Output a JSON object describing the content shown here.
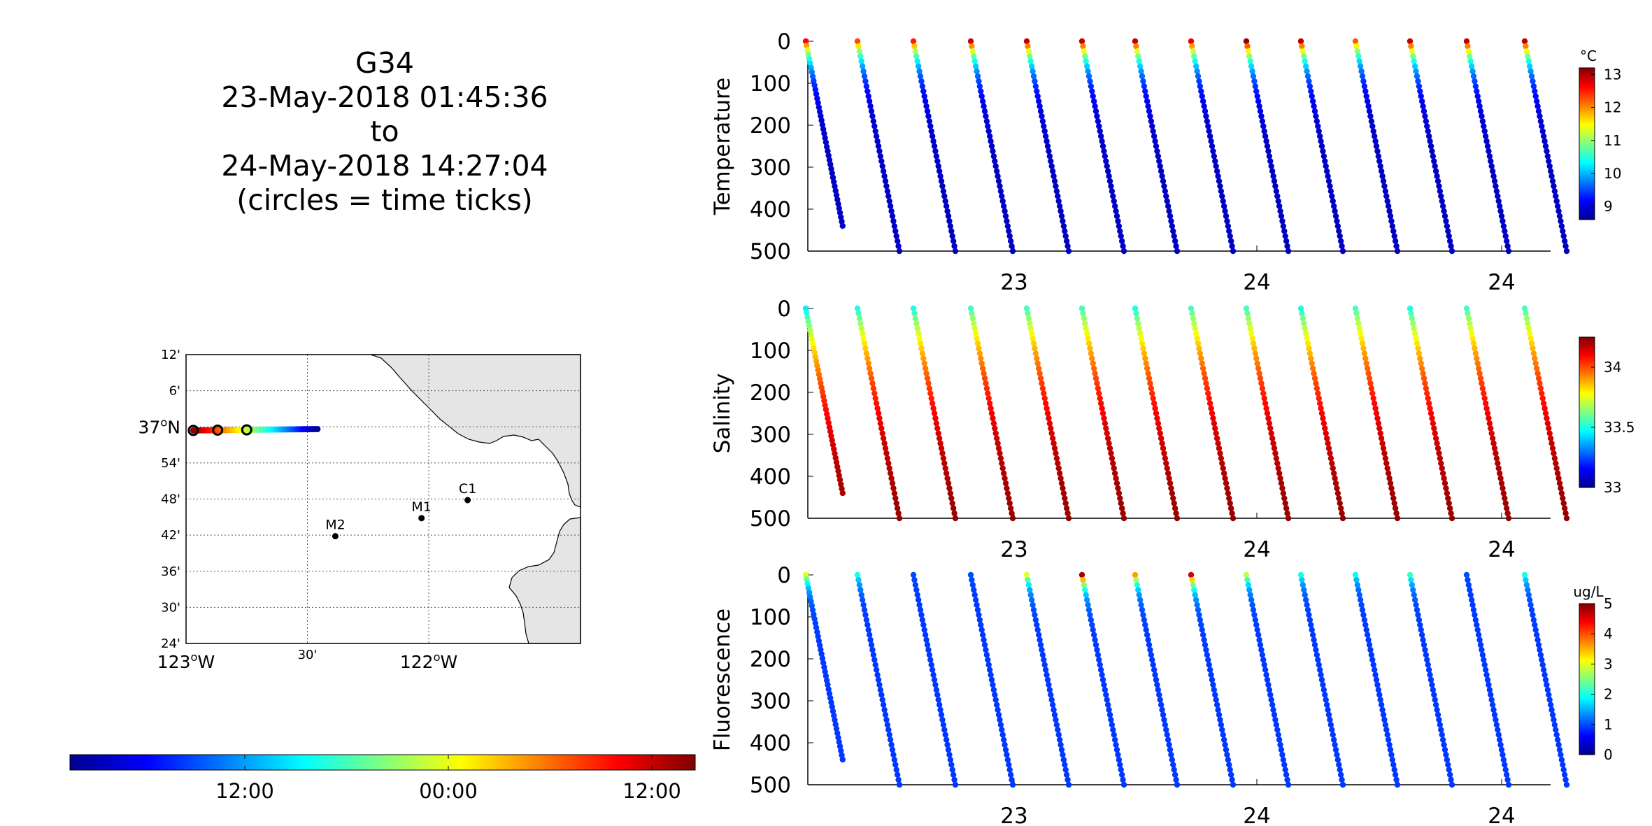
{
  "title": {
    "glider": "G34",
    "start": "23-May-2018 01:45:36",
    "to": "to",
    "end": "24-May-2018 14:27:04",
    "note": "(circles = time ticks)"
  },
  "chart_data": [
    {
      "type": "map",
      "lon_ticks": [
        "123°W",
        "30'",
        "122°W"
      ],
      "lat_ticks": [
        "12'",
        "6'",
        "37°N",
        "54'",
        "48'",
        "42'",
        "36'",
        "30'",
        "24'"
      ],
      "lon_range": [
        -123.0,
        -121.375
      ],
      "lat_range": [
        36.4,
        37.2
      ],
      "grid": true,
      "stations": [
        {
          "name": "M2",
          "lon": -122.385,
          "lat": 36.697
        },
        {
          "name": "M1",
          "lon": -122.03,
          "lat": 36.747
        },
        {
          "name": "C1",
          "lon": -121.84,
          "lat": 36.797
        }
      ],
      "track": {
        "lon_start": -122.97,
        "lon_end": -122.45,
        "lat": 36.99
      },
      "time_ticks_lon": [
        -122.97,
        -122.87,
        -122.75
      ],
      "time_colorbar": {
        "ticks": [
          "12:00",
          "00:00",
          "12:00"
        ],
        "colormap": "jet"
      }
    },
    {
      "type": "scatter",
      "ylabel": "Temperature",
      "ylim": [
        500,
        0
      ],
      "yticks": [
        "0",
        "100",
        "200",
        "300",
        "400",
        "500"
      ],
      "xticks": [
        "23",
        "24",
        "24"
      ],
      "colorbar": {
        "unit": "°C",
        "ticks": [
          "13",
          "12",
          "11",
          "10",
          "9"
        ],
        "range": [
          8.6,
          13.2
        ]
      },
      "profiles": [
        {
          "bottom": 440,
          "top_value": 12.6
        },
        {
          "bottom": 500,
          "top_value": 12.3
        },
        {
          "bottom": 500,
          "top_value": 12.5
        },
        {
          "bottom": 500,
          "top_value": 12.8
        },
        {
          "bottom": 500,
          "top_value": 12.9
        },
        {
          "bottom": 500,
          "top_value": 12.9
        },
        {
          "bottom": 500,
          "top_value": 12.9
        },
        {
          "bottom": 500,
          "top_value": 12.7
        },
        {
          "bottom": 500,
          "top_value": 13.1
        },
        {
          "bottom": 500,
          "top_value": 12.9
        },
        {
          "bottom": 500,
          "top_value": 12.2
        },
        {
          "bottom": 500,
          "top_value": 12.9
        },
        {
          "bottom": 500,
          "top_value": 12.9
        },
        {
          "bottom": 500,
          "top_value": 12.9
        }
      ]
    },
    {
      "type": "scatter",
      "ylabel": "Salinity",
      "ylim": [
        500,
        0
      ],
      "yticks": [
        "0",
        "100",
        "200",
        "300",
        "400",
        "500"
      ],
      "xticks": [
        "23",
        "24",
        "24"
      ],
      "colorbar": {
        "unit": "",
        "ticks": [
          "34",
          "33.5",
          "33"
        ],
        "range": [
          33.0,
          34.25
        ]
      },
      "profiles": [
        {
          "bottom": 440,
          "top_value": 33.45
        },
        {
          "bottom": 500,
          "top_value": 33.5
        },
        {
          "bottom": 500,
          "top_value": 33.5
        },
        {
          "bottom": 500,
          "top_value": 33.55
        },
        {
          "bottom": 500,
          "top_value": 33.55
        },
        {
          "bottom": 500,
          "top_value": 33.55
        },
        {
          "bottom": 500,
          "top_value": 33.5
        },
        {
          "bottom": 500,
          "top_value": 33.55
        },
        {
          "bottom": 500,
          "top_value": 33.55
        },
        {
          "bottom": 500,
          "top_value": 33.5
        },
        {
          "bottom": 500,
          "top_value": 33.55
        },
        {
          "bottom": 500,
          "top_value": 33.5
        },
        {
          "bottom": 500,
          "top_value": 33.55
        },
        {
          "bottom": 500,
          "top_value": 33.55
        }
      ]
    },
    {
      "type": "scatter",
      "ylabel": "Fluorescence",
      "ylim": [
        500,
        0
      ],
      "yticks": [
        "0",
        "100",
        "200",
        "300",
        "400",
        "500"
      ],
      "xticks": [
        "23",
        "24",
        "24"
      ],
      "colorbar": {
        "unit": "ug/L",
        "ticks": [
          "5",
          "4",
          "3",
          "2",
          "1",
          "0"
        ],
        "range": [
          0,
          5
        ]
      },
      "profiles": [
        {
          "bottom": 440,
          "top_value": 3.0
        },
        {
          "bottom": 500,
          "top_value": 2.0
        },
        {
          "bottom": 500,
          "top_value": 1.0
        },
        {
          "bottom": 500,
          "top_value": 1.0
        },
        {
          "bottom": 500,
          "top_value": 3.0
        },
        {
          "bottom": 500,
          "top_value": 4.8
        },
        {
          "bottom": 500,
          "top_value": 3.6
        },
        {
          "bottom": 500,
          "top_value": 4.6
        },
        {
          "bottom": 500,
          "top_value": 2.8
        },
        {
          "bottom": 500,
          "top_value": 2.0
        },
        {
          "bottom": 500,
          "top_value": 1.9
        },
        {
          "bottom": 500,
          "top_value": 2.2
        },
        {
          "bottom": 500,
          "top_value": 1.0
        },
        {
          "bottom": 500,
          "top_value": 2.0
        }
      ]
    }
  ]
}
